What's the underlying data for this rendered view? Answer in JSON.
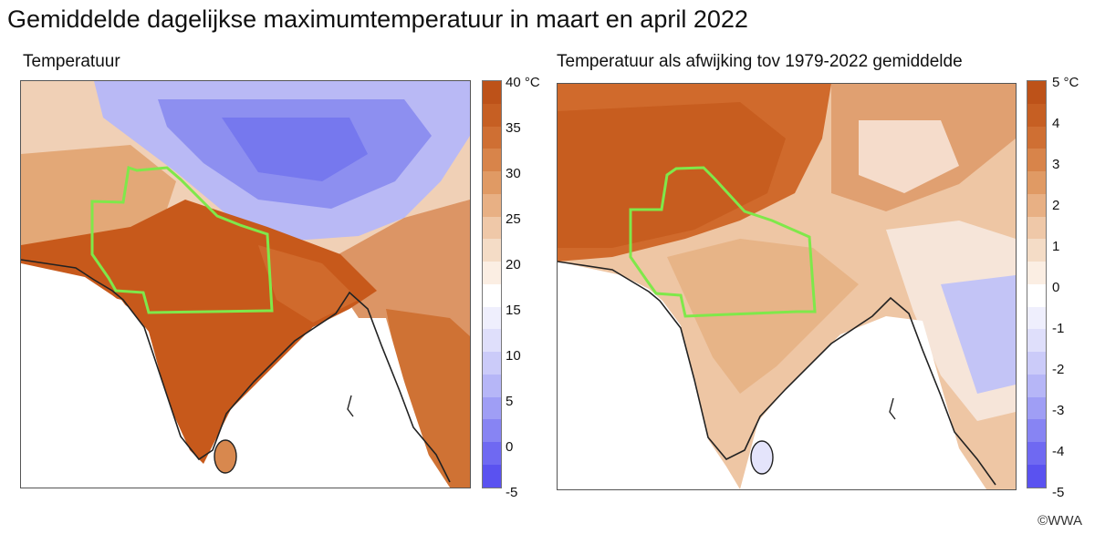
{
  "title": "Gemiddelde dagelijkse maximumtemperatuur in maart en april 2022",
  "credit": "©WWA",
  "panels": [
    {
      "subtitle": "Temperatuur",
      "colorbar_ticks": [
        "40 °C",
        "35",
        "30",
        "25",
        "20",
        "15",
        "10",
        "5",
        "0",
        "-5"
      ],
      "colorbar_range": [
        -5,
        40
      ],
      "colors": {
        "hot": "#c4581a",
        "warm": "#d98a50",
        "mild": "#f1d3ba",
        "cold": "#8a8cf0",
        "region_outline": "#7fe84a",
        "coastline": "#222222"
      }
    },
    {
      "subtitle": "Temperatuur als afwijking tov 1979-2022 gemiddelde",
      "colorbar_ticks": [
        "5 °C",
        "4",
        "3",
        "2",
        "1",
        "0",
        "-1",
        "-2",
        "-3",
        "-4",
        "-5"
      ],
      "colorbar_range": [
        -5,
        5
      ],
      "colors": {
        "hot": "#c75d1f",
        "warm": "#df9a66",
        "mild": "#f4dcc7",
        "cold": "#a8aaf2",
        "region_outline": "#7fe84a",
        "coastline": "#222222"
      }
    }
  ],
  "colorbar_steps": [
    "#5a52f0",
    "#6f69f2",
    "#8784f3",
    "#9f9ef5",
    "#b6b6f7",
    "#cbcbf9",
    "#dfdffb",
    "#efeffd",
    "#ffffff",
    "#fbeee3",
    "#f4dcc6",
    "#efc8a8",
    "#e8b084",
    "#e09a64",
    "#d8844a",
    "#cf6f33",
    "#c65f23",
    "#bd5219"
  ]
}
